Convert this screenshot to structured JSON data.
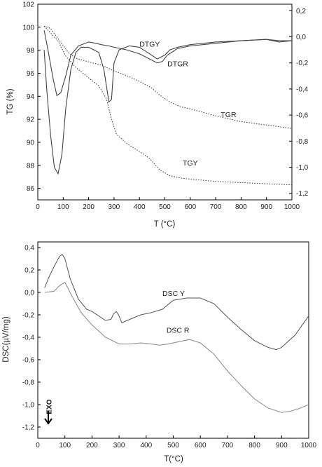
{
  "chart_data": [
    {
      "type": "line",
      "xlabel": "T (°C)",
      "ylabel": "TG (%)",
      "xlim": [
        0,
        1000
      ],
      "ylim": [
        85,
        102
      ],
      "y2lim": [
        -1.25,
        0.25
      ],
      "x_ticks": [
        0,
        100,
        200,
        300,
        400,
        500,
        600,
        700,
        800,
        900,
        1000
      ],
      "y_ticks": [
        86,
        88,
        90,
        92,
        94,
        96,
        98,
        100,
        102
      ],
      "y2_ticks": [
        "0,2",
        "0,0",
        "-0,2",
        "-0,4",
        "-0,6",
        "-0,8",
        "-1,0",
        "-1,2"
      ],
      "series": [
        {
          "name": "TGY",
          "axis": "left",
          "style": "dotted",
          "x": [
            25,
            50,
            80,
            110,
            150,
            200,
            240,
            270,
            290,
            310,
            350,
            400,
            440,
            480,
            520,
            560,
            600,
            650,
            700,
            800,
            900,
            1000
          ],
          "y": [
            100.1,
            99.5,
            98.8,
            97.5,
            96.5,
            95.6,
            94.9,
            93.8,
            92.0,
            90.7,
            89.9,
            89.2,
            88.6,
            87.6,
            87.1,
            86.9,
            86.8,
            86.7,
            86.6,
            86.5,
            86.4,
            86.3
          ]
        },
        {
          "name": "TGR",
          "axis": "left",
          "style": "dotted",
          "x": [
            25,
            50,
            80,
            120,
            150,
            200,
            250,
            300,
            350,
            400,
            450,
            480,
            520,
            560,
            600,
            650,
            700,
            800,
            900,
            1000
          ],
          "y": [
            100.1,
            99.9,
            99.0,
            97.8,
            97.3,
            97.0,
            96.7,
            96.2,
            95.8,
            95.3,
            94.7,
            94.1,
            93.5,
            93.1,
            92.9,
            92.6,
            92.3,
            91.8,
            91.5,
            91.2
          ]
        },
        {
          "name": "DTGY",
          "axis": "right",
          "style": "solid",
          "x": [
            25,
            35,
            50,
            65,
            80,
            95,
            110,
            130,
            150,
            170,
            200,
            240,
            260,
            280,
            290,
            300,
            320,
            360,
            400,
            440,
            470,
            500,
            520,
            550,
            600,
            700,
            800,
            900,
            950,
            1000
          ],
          "y": [
            -0.1,
            -0.4,
            -0.75,
            -1.0,
            -1.05,
            -0.9,
            -0.55,
            -0.25,
            -0.12,
            -0.08,
            -0.08,
            -0.12,
            -0.25,
            -0.5,
            -0.48,
            -0.2,
            -0.1,
            -0.07,
            -0.08,
            -0.13,
            -0.17,
            -0.14,
            -0.1,
            -0.08,
            -0.06,
            -0.04,
            -0.03,
            -0.02,
            -0.04,
            -0.03
          ]
        },
        {
          "name": "DTGR",
          "axis": "right",
          "style": "solid",
          "x": [
            25,
            40,
            60,
            75,
            90,
            110,
            130,
            160,
            200,
            230,
            250,
            280,
            300,
            350,
            400,
            440,
            470,
            490,
            510,
            550,
            600,
            700,
            800,
            900,
            950,
            1000
          ],
          "y": [
            0.05,
            -0.1,
            -0.32,
            -0.45,
            -0.43,
            -0.3,
            -0.14,
            -0.07,
            -0.04,
            -0.05,
            -0.06,
            -0.07,
            -0.08,
            -0.1,
            -0.13,
            -0.17,
            -0.2,
            -0.19,
            -0.14,
            -0.09,
            -0.07,
            -0.05,
            -0.03,
            -0.02,
            -0.03,
            -0.03
          ]
        }
      ],
      "annotations": [
        {
          "text": "DTGY",
          "x": 400,
          "y": 98.3
        },
        {
          "text": "DTGR",
          "x": 510,
          "y": 96.6
        },
        {
          "text": "TGR",
          "x": 720,
          "y": 92.2
        },
        {
          "text": "TGY",
          "x": 570,
          "y": 88.0
        }
      ]
    },
    {
      "type": "line",
      "xlabel": "T(°C)",
      "ylabel": "DSC(µV/mg)",
      "xlim": [
        0,
        1000
      ],
      "ylim": [
        -1.3,
        0.45
      ],
      "x_ticks": [
        "0",
        "100",
        "200",
        "300",
        "400",
        "500",
        "600",
        "700",
        "800",
        "900",
        "1000"
      ],
      "y_ticks": [
        "0,4",
        "0,2",
        "0,0",
        "-0,2",
        "-0,4",
        "-0,6",
        "-0,8",
        "-1,0",
        "-1,2"
      ],
      "series": [
        {
          "name": "DSC Y",
          "x": [
            25,
            40,
            60,
            80,
            90,
            100,
            120,
            150,
            180,
            200,
            250,
            270,
            280,
            290,
            300,
            310,
            330,
            380,
            420,
            460,
            500,
            550,
            600,
            650,
            700,
            750,
            800,
            850,
            880,
            900,
            950,
            1000
          ],
          "y": [
            0.04,
            0.13,
            0.23,
            0.32,
            0.34,
            0.3,
            0.12,
            -0.06,
            -0.15,
            -0.17,
            -0.25,
            -0.24,
            -0.19,
            -0.17,
            -0.21,
            -0.27,
            -0.25,
            -0.2,
            -0.18,
            -0.15,
            -0.07,
            -0.05,
            -0.05,
            -0.1,
            -0.22,
            -0.33,
            -0.43,
            -0.49,
            -0.51,
            -0.49,
            -0.38,
            -0.21
          ]
        },
        {
          "name": "DSC R",
          "x": [
            25,
            60,
            80,
            100,
            130,
            160,
            200,
            250,
            300,
            340,
            380,
            420,
            450,
            480,
            520,
            560,
            600,
            650,
            700,
            750,
            800,
            850,
            900,
            930,
            960,
            1000
          ],
          "y": [
            0.0,
            0.01,
            0.06,
            0.09,
            -0.05,
            -0.18,
            -0.29,
            -0.4,
            -0.46,
            -0.46,
            -0.45,
            -0.46,
            -0.47,
            -0.46,
            -0.44,
            -0.42,
            -0.45,
            -0.55,
            -0.7,
            -0.83,
            -0.95,
            -1.03,
            -1.07,
            -1.06,
            -1.04,
            -1.0
          ]
        }
      ],
      "annotations": [
        {
          "text": "DSC Y",
          "x": 460,
          "y": -0.03
        },
        {
          "text": "DSC R",
          "x": 475,
          "y": -0.36
        },
        {
          "text": "EXO",
          "x": 40,
          "y": -1.0
        }
      ]
    }
  ]
}
